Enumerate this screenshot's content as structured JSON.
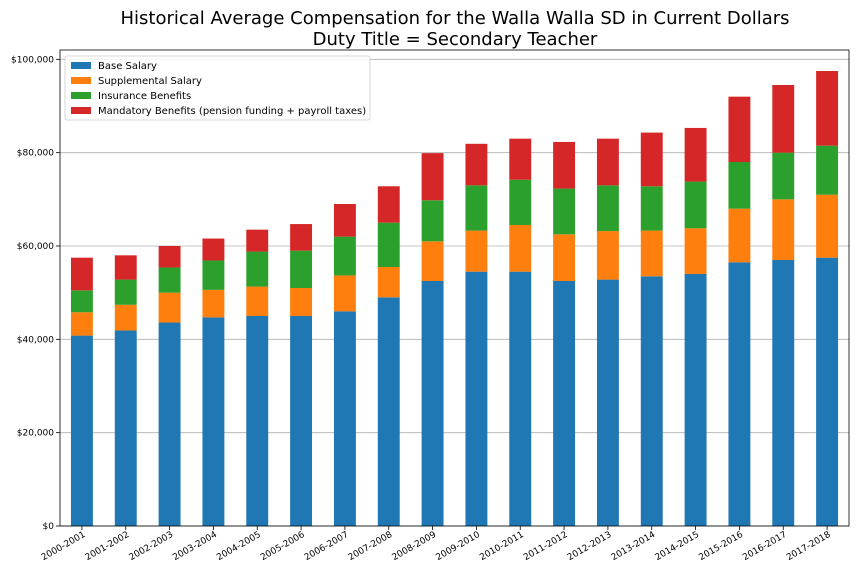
{
  "chart_data": {
    "type": "bar",
    "stacked": true,
    "title": "Historical Average Compensation for the Walla Walla SD in Current Dollars",
    "subtitle": "Duty Title = Secondary Teacher",
    "xlabel": "",
    "ylabel": "",
    "ylim": [
      0,
      102000
    ],
    "yticks": [
      0,
      20000,
      40000,
      60000,
      80000,
      100000
    ],
    "ytick_labels": [
      "$0",
      "$20,000",
      "$40,000",
      "$60,000",
      "$80,000",
      "$100,000"
    ],
    "grid": "horizontal",
    "legend_position": "top-left",
    "categories": [
      "2000-2001",
      "2001-2002",
      "2002-2003",
      "2003-2004",
      "2004-2005",
      "2005-2006",
      "2006-2007",
      "2007-2008",
      "2008-2009",
      "2009-2010",
      "2010-2011",
      "2011-2012",
      "2012-2013",
      "2013-2014",
      "2014-2015",
      "2015-2016",
      "2016-2017",
      "2017-2018"
    ],
    "series": [
      {
        "name": "Base Salary",
        "color": "#1f77b4",
        "values": [
          40800,
          41900,
          43600,
          44700,
          45000,
          45000,
          46000,
          49000,
          52500,
          54500,
          54500,
          52500,
          52800,
          53500,
          54000,
          56500,
          57000,
          57500
        ]
      },
      {
        "name": "Supplemental Salary",
        "color": "#ff7f0e",
        "values": [
          5000,
          5500,
          6400,
          5900,
          6300,
          6000,
          7700,
          6500,
          8500,
          8800,
          10000,
          10000,
          10400,
          9800,
          9800,
          11500,
          13000,
          13500
        ]
      },
      {
        "name": "Insurance Benefits",
        "color": "#2ca02c",
        "values": [
          4700,
          5400,
          5400,
          6300,
          7500,
          8000,
          8300,
          9500,
          8800,
          9700,
          9700,
          9800,
          9800,
          9500,
          10000,
          10000,
          10000,
          10500
        ]
      },
      {
        "name": "Mandatory Benefits (pension funding + payroll taxes)",
        "color": "#d62728",
        "values": [
          7000,
          5200,
          4600,
          4700,
          4700,
          5700,
          7000,
          7800,
          10100,
          8900,
          8800,
          10000,
          10000,
          11500,
          11500,
          14000,
          14500,
          16000
        ]
      }
    ]
  }
}
